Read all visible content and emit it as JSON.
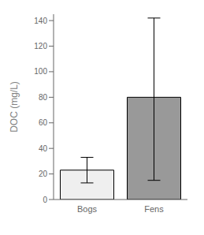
{
  "chart_data": {
    "type": "bar",
    "categories": [
      "Bogs",
      "Fens"
    ],
    "values": [
      23,
      80
    ],
    "errors_upper": [
      10,
      62
    ],
    "errors_lower": [
      10,
      65
    ],
    "colors": [
      "#efefef",
      "#999999"
    ],
    "ylabel": "DOC (mg/L)",
    "ylim": [
      0,
      145
    ],
    "yticks": [
      0,
      20,
      40,
      60,
      80,
      100,
      120,
      140
    ],
    "grid": false
  }
}
